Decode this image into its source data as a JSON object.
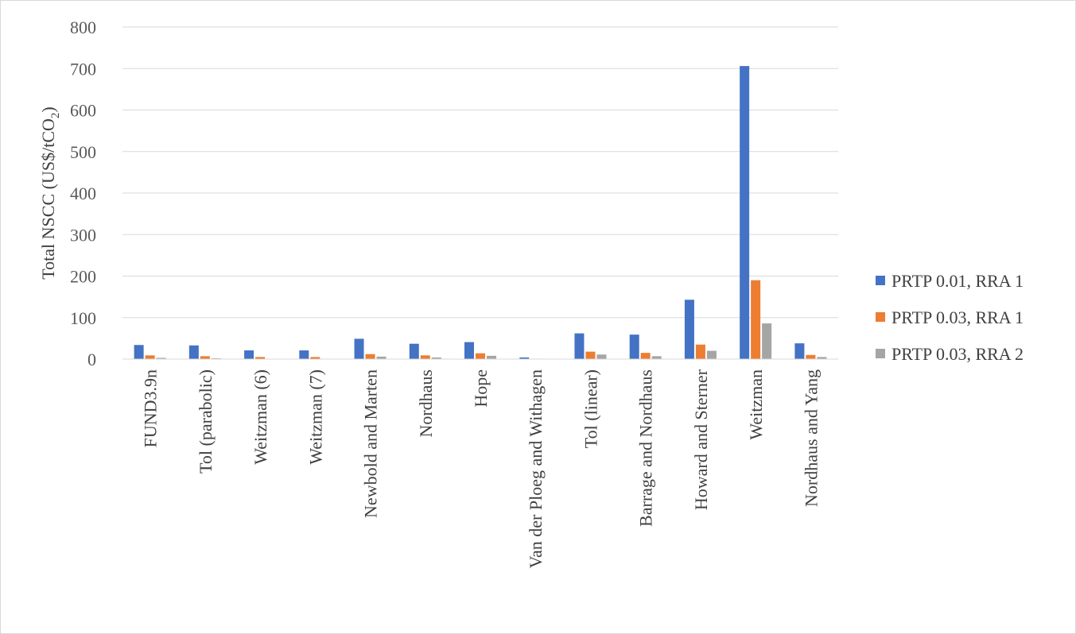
{
  "chart_data": {
    "type": "bar",
    "title": "",
    "xlabel": "",
    "ylabel_prefix": "Total NSCC (US$/tCO",
    "ylabel_sub": "2",
    "ylabel_suffix": ")",
    "ylim": [
      0,
      800
    ],
    "yticks": [
      0,
      100,
      200,
      300,
      400,
      500,
      600,
      700,
      800
    ],
    "grid": true,
    "legend": "right",
    "categories": [
      "FUND3.9n",
      "Tol (parabolic)",
      "Weitzman (6)",
      "Weitzman (7)",
      "Newbold and Marten",
      "Nordhaus",
      "Hope",
      "Van der Ploeg and Withagen",
      "Tol (linear)",
      "Barrage and Nordhaus",
      "Howard and Sterner",
      "Weitzman",
      "Nordhaus and Yang"
    ],
    "series": [
      {
        "name": "PRTP 0.01, RRA 1",
        "color": "#4472c4",
        "values": [
          34,
          33,
          21,
          21,
          49,
          37,
          41,
          4,
          62,
          59,
          143,
          706,
          38
        ]
      },
      {
        "name": "PRTP 0.03, RRA 1",
        "color": "#ed7d31",
        "values": [
          9,
          7,
          5,
          5,
          12,
          9,
          14,
          1,
          18,
          15,
          35,
          190,
          10
        ]
      },
      {
        "name": "PRTP 0.03, RRA 2",
        "color": "#a5a5a5",
        "values": [
          3,
          2,
          1,
          1,
          6,
          4,
          8,
          0.5,
          11,
          7,
          20,
          86,
          5
        ]
      }
    ]
  }
}
